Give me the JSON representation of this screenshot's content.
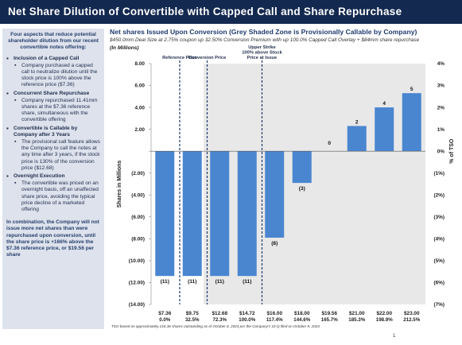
{
  "header": {
    "title": "Net Share Dilution of Convertible with Capped Call and Share Repurchase"
  },
  "sidebar": {
    "intro": "Four aspects that reduce potential shareholder dilution from our recent convertible notes offering:",
    "aspects": [
      {
        "title": "Inclusion of a Capped Call",
        "body": "Company purchased a capped call to neutralize dilution until the stock price is 100% above the reference price ($7.36)"
      },
      {
        "title": "Concurrent Share Repurchase",
        "body": "Company repurchased 11.41mm shares at the $7.36 reference share, simultaneous with the convertible offering"
      },
      {
        "title": "Convertible is Callable by Company after 3 Years",
        "body": "The provisional call feature allows the Company to call the notes at any time after 3 years, if the stock price is 130% of the conversion price ($12.68)"
      },
      {
        "title": "Overnight Execution",
        "body": "The convertible was priced on an overnight basis, off an unaffected share price, avoiding the typical price decline of a marketed offering"
      }
    ],
    "conclusion": "In combination, the Company will not issue more net shares than were repurchased upon conversion, until the share price is +166% above the $7.36 reference price, or $19.56 per share"
  },
  "chart_data": {
    "type": "bar",
    "title": "Net shares Issued Upon Conversion (Grey Shaded Zone is Provisionally Callable by Company)",
    "subtitle": "$450.0mm Deal Size at 2.75% coupon up 32.50% Conversion Premium with up 100.0% Capped Call Overlay + $84mm share repurchase",
    "unit_label": "(In Millions)",
    "ylabel": "Shares in Millions",
    "y2label": "% of TSO",
    "ylim": [
      -14,
      8
    ],
    "y_ticks": [
      8,
      6,
      4,
      2,
      0,
      -2,
      -4,
      -6,
      -8,
      -10,
      -12,
      -14
    ],
    "y_tick_labels": [
      "8.00",
      "6.00",
      "4.00",
      "2.00",
      "",
      "(2.00)",
      "(4.00)",
      "(6.00)",
      "(8.00)",
      "(10.00)",
      "(12.00)",
      "(14.00)"
    ],
    "y2_ticks": [
      4,
      3,
      2,
      1,
      0,
      -1,
      -2,
      -3,
      -4,
      -5,
      -6,
      -7
    ],
    "y2_tick_labels": [
      "4%",
      "3%",
      "2%",
      "1%",
      "0%",
      "(1%)",
      "(2%)",
      "(3%)",
      "(4%)",
      "(5%)",
      "(6%)",
      "(7%)"
    ],
    "categories": [
      "$7.36",
      "$9.75",
      "$12.68",
      "$14.72",
      "$16.00",
      "$18.00",
      "$19.56",
      "$21.00",
      "$22.00",
      "$23.00"
    ],
    "category_sublabels": [
      "0.0%",
      "32.5%",
      "72.3%",
      "100.0%",
      "117.4%",
      "144.6%",
      "165.7%",
      "185.3%",
      "198.9%",
      "212.5%"
    ],
    "values": [
      -11.4,
      -11.4,
      -11.4,
      -11.4,
      -7.9,
      -2.9,
      0,
      2.3,
      4.0,
      5.3
    ],
    "data_labels": [
      "(11)",
      "(11)",
      "(11)",
      "(11)",
      "(8)",
      "(3)",
      "0",
      "2",
      "4",
      "5"
    ],
    "bar_color": "#4a86d0",
    "shaded_zone_color": "#e8e8e8",
    "shaded_from_category_index": 2,
    "grid": false,
    "reference_lines": [
      {
        "after_index": 0,
        "label": "Reference Price"
      },
      {
        "after_index": 1,
        "label": "Conversion Price"
      },
      {
        "after_index": 3,
        "label": "Upper Strike 100% above Stock Price at Issue"
      }
    ],
    "footnote": "TSO based on approximately 216.36 shares outstanding as of October 8, 2024 per the Company's 10-Q filed on October 9, 2024."
  },
  "page_number": "1"
}
